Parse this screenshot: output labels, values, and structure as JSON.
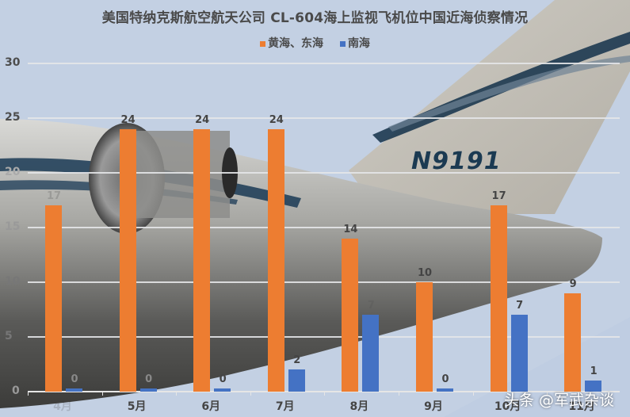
{
  "chart_data": {
    "type": "bar",
    "title": "美国特纳克斯航空航天公司 CL-604海上监视飞机位中国近海侦察情况",
    "categories": [
      "4月",
      "5月",
      "6月",
      "7月",
      "8月",
      "9月",
      "10月",
      "11月"
    ],
    "series": [
      {
        "name": "黄海、东海",
        "color": "#ed7d31",
        "values": [
          17,
          24,
          24,
          24,
          14,
          10,
          17,
          9
        ]
      },
      {
        "name": "南海",
        "color": "#4472c4",
        "values": [
          0,
          0,
          0,
          2,
          7,
          0,
          7,
          1
        ]
      }
    ],
    "xlabel": "",
    "ylabel": "",
    "ylim": [
      0,
      30
    ],
    "yticks": [
      0,
      5,
      10,
      15,
      20,
      25,
      30
    ],
    "grid": true,
    "legend_position": "top"
  },
  "title": "美国特纳克斯航空航天公司 CL-604海上监视飞机位中国近海侦察情况",
  "legend": [
    {
      "label": "黄海、东海",
      "color": "#ed7d31"
    },
    {
      "label": "南海",
      "color": "#4472c4"
    }
  ],
  "yticks": [
    "30",
    "25",
    "20",
    "15",
    "10",
    "5",
    "0"
  ],
  "background": {
    "aircraft_registration": "N9191"
  },
  "watermark": "头条 @军武杂谈"
}
